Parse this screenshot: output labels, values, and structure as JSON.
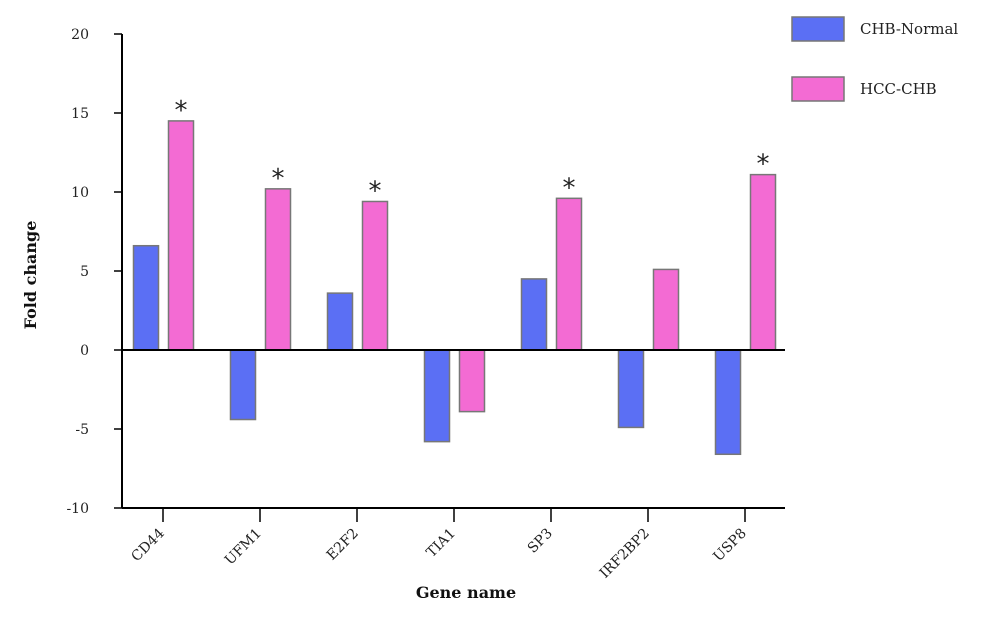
{
  "chart_data": {
    "type": "bar",
    "xlabel": "Gene name",
    "ylabel": "Fold change",
    "ylim": [
      -10,
      20
    ],
    "yticks": [
      20,
      15,
      10,
      5,
      0,
      -5,
      -10
    ],
    "categories": [
      "CD44",
      "UFM1",
      "E2F2",
      "TIA1",
      "SP3",
      "IRF2BP2",
      "USP8"
    ],
    "series": [
      {
        "name": "CHB-Normal",
        "color": "#5b6ff4",
        "values": [
          6.6,
          -4.4,
          3.6,
          -5.8,
          4.5,
          -4.9,
          -6.6
        ]
      },
      {
        "name": "HCC-CHB",
        "color": "#f36bd3",
        "values": [
          14.5,
          10.2,
          9.4,
          -3.9,
          9.6,
          5.1,
          11.1
        ]
      }
    ],
    "significance_marker": "*",
    "significant": [
      true,
      true,
      true,
      false,
      true,
      false,
      true
    ],
    "legend_position": "top-right",
    "grid": false
  }
}
